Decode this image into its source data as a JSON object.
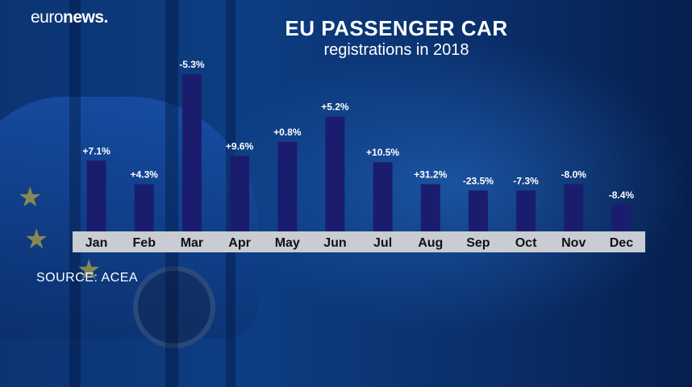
{
  "brand": {
    "logo_light": "euro",
    "logo_bold": "news."
  },
  "header": {
    "title": "EU PASSENGER CAR",
    "subtitle": "registrations in 2018"
  },
  "footer": {
    "source": "SOURCE: ACEA"
  },
  "colors": {
    "bar": "#1a1d6e",
    "axis_band": "#c9ccd3",
    "label": "#ffffff",
    "tick": "#111111"
  },
  "chart_data": {
    "type": "bar",
    "title": "EU PASSENGER CAR",
    "subtitle": "registrations in 2018",
    "categories": [
      "Jan",
      "Feb",
      "Mar",
      "Apr",
      "May",
      "Jun",
      "Jul",
      "Aug",
      "Sep",
      "Oct",
      "Nov",
      "Dec"
    ],
    "values": [
      7.1,
      4.3,
      -5.3,
      9.6,
      0.8,
      5.2,
      10.5,
      31.2,
      -23.5,
      -7.3,
      -8.0,
      -8.4
    ],
    "data_labels": [
      "+7.1%",
      "+4.3%",
      "-5.3%",
      "+9.6%",
      "+0.8%",
      "+5.2%",
      "+10.5%",
      "+31.2%",
      "-23.5%",
      "-7.3%",
      "-8.0%",
      "-8.4%"
    ],
    "bar_display_level": [
      0.45,
      0.3,
      1.0,
      0.48,
      0.57,
      0.73,
      0.44,
      0.3,
      0.26,
      0.26,
      0.3,
      0.17
    ],
    "grid": false,
    "legend": "none",
    "source": "SOURCE: ACEA"
  }
}
